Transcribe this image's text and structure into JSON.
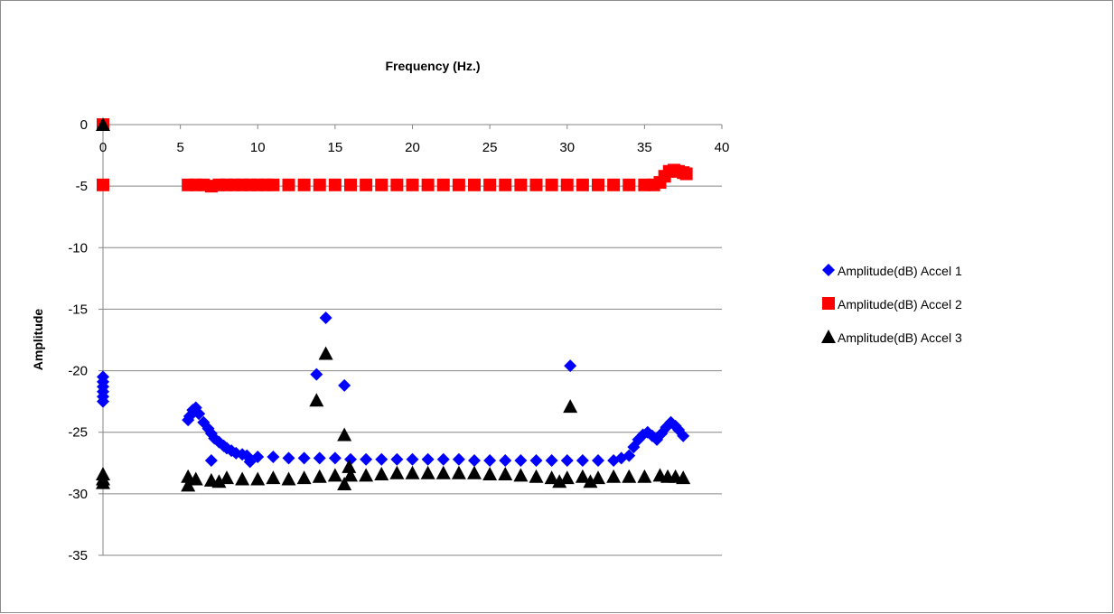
{
  "chart_data": {
    "type": "scatter",
    "xlabel": "Frequency (Hz.)",
    "ylabel": "Amplitude",
    "xlim": [
      0,
      40
    ],
    "ylim": [
      -35,
      0
    ],
    "x_ticks": [
      0,
      5,
      10,
      15,
      20,
      25,
      30,
      35,
      40
    ],
    "y_ticks": [
      0,
      -5,
      -10,
      -15,
      -20,
      -25,
      -30,
      -35
    ],
    "grid": "horizontal major",
    "x_axis_position": "top",
    "legend_position": "right",
    "series": [
      {
        "name": "Amplitude(dB) Accel 1",
        "marker": "diamond",
        "color": "#0000ff",
        "points": [
          [
            0,
            -20.5
          ],
          [
            0,
            -20.9
          ],
          [
            0,
            -21.3
          ],
          [
            0,
            -21.7
          ],
          [
            0,
            -22.1
          ],
          [
            0,
            -22.5
          ],
          [
            5.5,
            -24
          ],
          [
            5.6,
            -23.7
          ],
          [
            5.8,
            -23.2
          ],
          [
            6.0,
            -23.0
          ],
          [
            6.2,
            -23.5
          ],
          [
            6.5,
            -24.2
          ],
          [
            6.8,
            -24.7
          ],
          [
            7.0,
            -25.1
          ],
          [
            7.0,
            -27.3
          ],
          [
            7.2,
            -25.5
          ],
          [
            7.5,
            -25.8
          ],
          [
            7.8,
            -26.1
          ],
          [
            8.0,
            -26.3
          ],
          [
            8.3,
            -26.5
          ],
          [
            8.6,
            -26.7
          ],
          [
            9.0,
            -26.8
          ],
          [
            9.3,
            -26.9
          ],
          [
            9.5,
            -27.4
          ],
          [
            10,
            -27.0
          ],
          [
            11,
            -27.0
          ],
          [
            12,
            -27.1
          ],
          [
            13,
            -27.1
          ],
          [
            13.8,
            -20.3
          ],
          [
            14,
            -27.1
          ],
          [
            14.4,
            -15.7
          ],
          [
            15,
            -27.1
          ],
          [
            15.6,
            -21.2
          ],
          [
            16,
            -27.2
          ],
          [
            17,
            -27.2
          ],
          [
            18,
            -27.2
          ],
          [
            19,
            -27.2
          ],
          [
            20,
            -27.2
          ],
          [
            21,
            -27.2
          ],
          [
            22,
            -27.2
          ],
          [
            23,
            -27.2
          ],
          [
            24,
            -27.3
          ],
          [
            25,
            -27.3
          ],
          [
            26,
            -27.3
          ],
          [
            27,
            -27.3
          ],
          [
            28,
            -27.3
          ],
          [
            29,
            -27.3
          ],
          [
            30,
            -27.3
          ],
          [
            30.2,
            -19.6
          ],
          [
            31,
            -27.3
          ],
          [
            32,
            -27.3
          ],
          [
            33,
            -27.3
          ],
          [
            33.5,
            -27.1
          ],
          [
            34.0,
            -26.9
          ],
          [
            34.3,
            -26.2
          ],
          [
            34.6,
            -25.6
          ],
          [
            34.9,
            -25.2
          ],
          [
            35.2,
            -25.0
          ],
          [
            35.5,
            -25.3
          ],
          [
            35.8,
            -25.6
          ],
          [
            36.1,
            -25.1
          ],
          [
            36.4,
            -24.6
          ],
          [
            36.7,
            -24.2
          ],
          [
            37.0,
            -24.5
          ],
          [
            37.2,
            -24.8
          ],
          [
            37.5,
            -25.3
          ]
        ]
      },
      {
        "name": "Amplitude(dB) Accel 2",
        "marker": "square",
        "color": "#ff0000",
        "points": [
          [
            0,
            0
          ],
          [
            0,
            -4.9
          ],
          [
            5.5,
            -4.9
          ],
          [
            6,
            -4.9
          ],
          [
            6.5,
            -4.9
          ],
          [
            7,
            -5.0
          ],
          [
            7.5,
            -4.9
          ],
          [
            8,
            -4.9
          ],
          [
            8.5,
            -4.9
          ],
          [
            9,
            -4.9
          ],
          [
            9.5,
            -4.9
          ],
          [
            10,
            -4.9
          ],
          [
            10.5,
            -4.9
          ],
          [
            11,
            -4.9
          ],
          [
            12,
            -4.9
          ],
          [
            13,
            -4.9
          ],
          [
            14,
            -4.9
          ],
          [
            15,
            -4.9
          ],
          [
            16,
            -4.9
          ],
          [
            17,
            -4.9
          ],
          [
            18,
            -4.9
          ],
          [
            19,
            -4.9
          ],
          [
            20,
            -4.9
          ],
          [
            21,
            -4.9
          ],
          [
            22,
            -4.9
          ],
          [
            23,
            -4.9
          ],
          [
            24,
            -4.9
          ],
          [
            25,
            -4.9
          ],
          [
            26,
            -4.9
          ],
          [
            27,
            -4.9
          ],
          [
            28,
            -4.9
          ],
          [
            29,
            -4.9
          ],
          [
            30,
            -4.9
          ],
          [
            31,
            -4.9
          ],
          [
            32,
            -4.9
          ],
          [
            33,
            -4.9
          ],
          [
            34,
            -4.9
          ],
          [
            35,
            -4.9
          ],
          [
            35.6,
            -4.9
          ],
          [
            36.0,
            -4.7
          ],
          [
            36.3,
            -4.2
          ],
          [
            36.6,
            -3.8
          ],
          [
            36.9,
            -3.7
          ],
          [
            37.2,
            -3.8
          ],
          [
            37.5,
            -3.9
          ],
          [
            37.7,
            -4.0
          ]
        ]
      },
      {
        "name": "Amplitude(dB) Accel 3",
        "marker": "triangle",
        "color": "#000000",
        "points": [
          [
            0,
            0
          ],
          [
            0,
            -28.4
          ],
          [
            0,
            -28.8
          ],
          [
            0,
            -29.1
          ],
          [
            5.5,
            -28.6
          ],
          [
            5.5,
            -29.3
          ],
          [
            6,
            -28.8
          ],
          [
            7,
            -28.9
          ],
          [
            7.5,
            -29.0
          ],
          [
            8,
            -28.7
          ],
          [
            9,
            -28.8
          ],
          [
            10,
            -28.8
          ],
          [
            11,
            -28.7
          ],
          [
            12,
            -28.8
          ],
          [
            13,
            -28.7
          ],
          [
            13.8,
            -22.4
          ],
          [
            14,
            -28.6
          ],
          [
            14.4,
            -18.6
          ],
          [
            15,
            -28.5
          ],
          [
            15.6,
            -25.2
          ],
          [
            15.6,
            -29.2
          ],
          [
            15.9,
            -27.8
          ],
          [
            16,
            -28.5
          ],
          [
            17,
            -28.5
          ],
          [
            18,
            -28.4
          ],
          [
            19,
            -28.3
          ],
          [
            20,
            -28.3
          ],
          [
            21,
            -28.3
          ],
          [
            22,
            -28.3
          ],
          [
            23,
            -28.3
          ],
          [
            24,
            -28.3
          ],
          [
            25,
            -28.4
          ],
          [
            26,
            -28.4
          ],
          [
            27,
            -28.5
          ],
          [
            28,
            -28.6
          ],
          [
            29,
            -28.7
          ],
          [
            29.5,
            -29.0
          ],
          [
            30,
            -28.7
          ],
          [
            30.2,
            -22.9
          ],
          [
            31,
            -28.6
          ],
          [
            31.5,
            -29.0
          ],
          [
            32,
            -28.7
          ],
          [
            33,
            -28.6
          ],
          [
            34,
            -28.6
          ],
          [
            35,
            -28.6
          ],
          [
            36,
            -28.5
          ],
          [
            36.5,
            -28.6
          ],
          [
            37,
            -28.6
          ],
          [
            37.5,
            -28.7
          ]
        ]
      }
    ]
  }
}
